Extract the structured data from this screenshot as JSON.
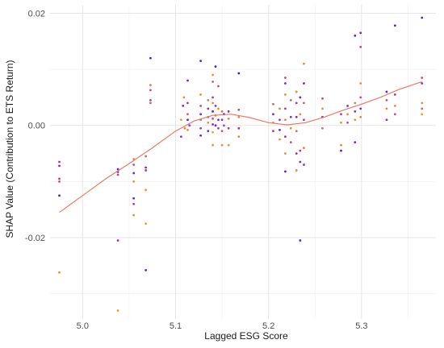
{
  "chart_data": {
    "type": "scatter",
    "title": "",
    "xlabel": "Lagged ESG Score",
    "ylabel": "SHAP Value (Contribution to ETS Return)",
    "xlim": [
      4.965,
      5.38
    ],
    "ylim": [
      -0.0345,
      0.0215
    ],
    "x_ticks": [
      5.0,
      5.1,
      5.2,
      5.3
    ],
    "x_tick_labels": [
      "5.0",
      "5.1",
      "5.2",
      "5.3"
    ],
    "y_ticks": [
      -0.02,
      0.0,
      0.02
    ],
    "y_tick_labels": [
      "-0.02",
      "0.00",
      "0.02"
    ],
    "grid": true,
    "legend": "none",
    "colors": {
      "low": "#3b14e0",
      "mid": "#b03a9a",
      "high": "#f5a623",
      "trend": "#f07865"
    },
    "points": [
      {
        "x": 4.975,
        "y": -0.0065,
        "c": 0.45
      },
      {
        "x": 4.975,
        "y": -0.0072,
        "c": 0.3
      },
      {
        "x": 4.975,
        "y": -0.0095,
        "c": 0.5
      },
      {
        "x": 4.975,
        "y": -0.01,
        "c": 0.6
      },
      {
        "x": 4.975,
        "y": -0.0125,
        "c": 0.1
      },
      {
        "x": 4.975,
        "y": -0.0262,
        "c": 0.9
      },
      {
        "x": 5.038,
        "y": -0.0078,
        "c": 0.2
      },
      {
        "x": 5.038,
        "y": -0.0083,
        "c": 0.4
      },
      {
        "x": 5.038,
        "y": -0.0088,
        "c": 0.55
      },
      {
        "x": 5.038,
        "y": -0.0205,
        "c": 0.35
      },
      {
        "x": 5.038,
        "y": -0.033,
        "c": 0.95
      },
      {
        "x": 5.055,
        "y": -0.006,
        "c": 0.85
      },
      {
        "x": 5.055,
        "y": -0.007,
        "c": 0.6
      },
      {
        "x": 5.055,
        "y": -0.0085,
        "c": 0.25
      },
      {
        "x": 5.055,
        "y": -0.01,
        "c": 0.9
      },
      {
        "x": 5.055,
        "y": -0.013,
        "c": 0.15
      },
      {
        "x": 5.055,
        "y": -0.014,
        "c": 0.5
      },
      {
        "x": 5.055,
        "y": -0.016,
        "c": 0.9
      },
      {
        "x": 5.068,
        "y": -0.0055,
        "c": 0.7
      },
      {
        "x": 5.068,
        "y": -0.0075,
        "c": 0.3
      },
      {
        "x": 5.068,
        "y": -0.008,
        "c": 0.5
      },
      {
        "x": 5.068,
        "y": -0.0115,
        "c": 0.92
      },
      {
        "x": 5.068,
        "y": -0.0175,
        "c": 0.95
      },
      {
        "x": 5.068,
        "y": -0.0258,
        "c": 0.15
      },
      {
        "x": 5.073,
        "y": 0.012,
        "c": 0.05
      },
      {
        "x": 5.073,
        "y": 0.0072,
        "c": 0.8
      },
      {
        "x": 5.073,
        "y": 0.0063,
        "c": 0.6
      },
      {
        "x": 5.073,
        "y": 0.0045,
        "c": 0.5
      },
      {
        "x": 5.073,
        "y": 0.004,
        "c": 0.7
      },
      {
        "x": 5.106,
        "y": 0.001,
        "c": 0.95
      },
      {
        "x": 5.106,
        "y": -0.002,
        "c": 0.4
      },
      {
        "x": 5.108,
        "y": 0.0035,
        "c": 0.3
      },
      {
        "x": 5.109,
        "y": 0.005,
        "c": 0.9
      },
      {
        "x": 5.11,
        "y": -0.0005,
        "c": 0.85
      },
      {
        "x": 5.113,
        "y": 0.008,
        "c": 0.25
      },
      {
        "x": 5.113,
        "y": 0.004,
        "c": 0.5
      },
      {
        "x": 5.113,
        "y": 0.002,
        "c": 0.7
      },
      {
        "x": 5.113,
        "y": 0.001,
        "c": 0.2
      },
      {
        "x": 5.113,
        "y": -0.0008,
        "c": 0.9
      },
      {
        "x": 5.115,
        "y": 0.0,
        "c": 0.45
      },
      {
        "x": 5.127,
        "y": 0.0115,
        "c": 0.1
      },
      {
        "x": 5.127,
        "y": 0.0055,
        "c": 0.9
      },
      {
        "x": 5.127,
        "y": 0.0035,
        "c": 0.6
      },
      {
        "x": 5.127,
        "y": 0.002,
        "c": 0.3
      },
      {
        "x": 5.127,
        "y": 0.001,
        "c": 0.75
      },
      {
        "x": 5.127,
        "y": -0.0005,
        "c": 0.5
      },
      {
        "x": 5.127,
        "y": -0.0018,
        "c": 0.2
      },
      {
        "x": 5.135,
        "y": 0.0045,
        "c": 0.8
      },
      {
        "x": 5.135,
        "y": 0.003,
        "c": 0.4
      },
      {
        "x": 5.135,
        "y": 0.0015,
        "c": 0.6
      },
      {
        "x": 5.135,
        "y": 0.0005,
        "c": 0.9
      },
      {
        "x": 5.135,
        "y": -0.001,
        "c": 0.3
      },
      {
        "x": 5.14,
        "y": 0.009,
        "c": 0.9
      },
      {
        "x": 5.14,
        "y": 0.0078,
        "c": 0.7
      },
      {
        "x": 5.14,
        "y": 0.005,
        "c": 0.5
      },
      {
        "x": 5.14,
        "y": 0.004,
        "c": 0.85
      },
      {
        "x": 5.14,
        "y": 0.0025,
        "c": 0.25
      },
      {
        "x": 5.14,
        "y": 0.0012,
        "c": 0.6
      },
      {
        "x": 5.14,
        "y": 0.0002,
        "c": 0.35
      },
      {
        "x": 5.14,
        "y": -0.0012,
        "c": 0.95
      },
      {
        "x": 5.14,
        "y": -0.0035,
        "c": 0.9
      },
      {
        "x": 5.143,
        "y": 0.0105,
        "c": 0.05
      },
      {
        "x": 5.143,
        "y": 0.0035,
        "c": 0.4
      },
      {
        "x": 5.143,
        "y": 0.0018,
        "c": 0.75
      },
      {
        "x": 5.143,
        "y": 0.0,
        "c": 0.2
      },
      {
        "x": 5.146,
        "y": 0.007,
        "c": 0.6
      },
      {
        "x": 5.146,
        "y": 0.003,
        "c": 0.9
      },
      {
        "x": 5.146,
        "y": 0.001,
        "c": 0.3
      },
      {
        "x": 5.146,
        "y": -0.0005,
        "c": 0.5
      },
      {
        "x": 5.15,
        "y": 0.0025,
        "c": 0.8
      },
      {
        "x": 5.15,
        "y": 0.001,
        "c": 0.4
      },
      {
        "x": 5.15,
        "y": -0.001,
        "c": 0.65
      },
      {
        "x": 5.15,
        "y": -0.0035,
        "c": 0.9
      },
      {
        "x": 5.152,
        "y": 0.002,
        "c": 0.1
      },
      {
        "x": 5.152,
        "y": 0.0,
        "c": 0.55
      },
      {
        "x": 5.157,
        "y": 0.0025,
        "c": 0.35
      },
      {
        "x": 5.157,
        "y": 0.0012,
        "c": 0.85
      },
      {
        "x": 5.157,
        "y": -0.0005,
        "c": 0.5
      },
      {
        "x": 5.157,
        "y": -0.0035,
        "c": 0.9
      },
      {
        "x": 5.168,
        "y": 0.0093,
        "c": 0.05
      },
      {
        "x": 5.168,
        "y": 0.0028,
        "c": 0.6
      },
      {
        "x": 5.168,
        "y": 0.0015,
        "c": 0.9
      },
      {
        "x": 5.168,
        "y": -0.0005,
        "c": 0.4
      },
      {
        "x": 5.168,
        "y": -0.002,
        "c": 0.85
      },
      {
        "x": 5.205,
        "y": 0.0038,
        "c": 0.7
      },
      {
        "x": 5.205,
        "y": 0.002,
        "c": 0.3
      },
      {
        "x": 5.205,
        "y": 0.0005,
        "c": 0.9
      },
      {
        "x": 5.205,
        "y": -0.001,
        "c": 0.5
      },
      {
        "x": 5.212,
        "y": 0.003,
        "c": 0.85
      },
      {
        "x": 5.212,
        "y": 0.001,
        "c": 0.45
      },
      {
        "x": 5.212,
        "y": -0.0008,
        "c": 0.2
      },
      {
        "x": 5.212,
        "y": -0.0025,
        "c": 0.9
      },
      {
        "x": 5.218,
        "y": 0.0085,
        "c": 0.6
      },
      {
        "x": 5.218,
        "y": 0.0075,
        "c": 0.3
      },
      {
        "x": 5.218,
        "y": 0.0055,
        "c": 0.9
      },
      {
        "x": 5.218,
        "y": 0.003,
        "c": 0.5
      },
      {
        "x": 5.218,
        "y": 0.001,
        "c": 0.85
      },
      {
        "x": 5.218,
        "y": -0.002,
        "c": 0.4
      },
      {
        "x": 5.218,
        "y": -0.005,
        "c": 0.9
      },
      {
        "x": 5.218,
        "y": -0.0082,
        "c": 0.15
      },
      {
        "x": 5.224,
        "y": 0.0045,
        "c": 0.7
      },
      {
        "x": 5.224,
        "y": 0.0015,
        "c": 0.35
      },
      {
        "x": 5.224,
        "y": -0.0005,
        "c": 0.9
      },
      {
        "x": 5.224,
        "y": -0.003,
        "c": 0.6
      },
      {
        "x": 5.23,
        "y": 0.006,
        "c": 0.9
      },
      {
        "x": 5.23,
        "y": 0.004,
        "c": 0.5
      },
      {
        "x": 5.23,
        "y": 0.0015,
        "c": 0.3
      },
      {
        "x": 5.23,
        "y": -0.001,
        "c": 0.8
      },
      {
        "x": 5.23,
        "y": -0.005,
        "c": 0.4
      },
      {
        "x": 5.23,
        "y": -0.008,
        "c": 0.9
      },
      {
        "x": 5.234,
        "y": 0.005,
        "c": 0.2
      },
      {
        "x": 5.234,
        "y": 0.002,
        "c": 0.9
      },
      {
        "x": 5.234,
        "y": -0.0045,
        "c": 0.55
      },
      {
        "x": 5.234,
        "y": -0.0065,
        "c": 0.3
      },
      {
        "x": 5.234,
        "y": -0.0205,
        "c": 0.1
      },
      {
        "x": 5.238,
        "y": 0.011,
        "c": 0.9
      },
      {
        "x": 5.238,
        "y": 0.0075,
        "c": 0.25
      },
      {
        "x": 5.238,
        "y": 0.004,
        "c": 0.7
      },
      {
        "x": 5.238,
        "y": 0.001,
        "c": 0.5
      },
      {
        "x": 5.238,
        "y": -0.004,
        "c": 0.85
      },
      {
        "x": 5.238,
        "y": -0.007,
        "c": 0.4
      },
      {
        "x": 5.258,
        "y": 0.0048,
        "c": 0.6
      },
      {
        "x": 5.258,
        "y": 0.003,
        "c": 0.9
      },
      {
        "x": 5.258,
        "y": 0.0015,
        "c": 0.3
      },
      {
        "x": 5.258,
        "y": -0.0005,
        "c": 0.75
      },
      {
        "x": 5.278,
        "y": 0.002,
        "c": 0.5
      },
      {
        "x": 5.278,
        "y": 0.0005,
        "c": 0.9
      },
      {
        "x": 5.278,
        "y": -0.0035,
        "c": 0.85
      },
      {
        "x": 5.278,
        "y": -0.0045,
        "c": 0.15
      },
      {
        "x": 5.285,
        "y": 0.0035,
        "c": 0.4
      },
      {
        "x": 5.285,
        "y": 0.002,
        "c": 0.9
      },
      {
        "x": 5.285,
        "y": 0.0005,
        "c": 0.6
      },
      {
        "x": 5.293,
        "y": 0.016,
        "c": 0.2
      },
      {
        "x": 5.293,
        "y": 0.004,
        "c": 0.85
      },
      {
        "x": 5.293,
        "y": 0.0025,
        "c": 0.45
      },
      {
        "x": 5.293,
        "y": 0.001,
        "c": 0.9
      },
      {
        "x": 5.293,
        "y": -0.003,
        "c": 0.2
      },
      {
        "x": 5.299,
        "y": 0.0165,
        "c": 0.3
      },
      {
        "x": 5.299,
        "y": 0.014,
        "c": 0.55
      },
      {
        "x": 5.299,
        "y": 0.0075,
        "c": 0.9
      },
      {
        "x": 5.299,
        "y": 0.005,
        "c": 0.6
      },
      {
        "x": 5.299,
        "y": 0.003,
        "c": 0.35
      },
      {
        "x": 5.299,
        "y": 0.0015,
        "c": 0.85
      },
      {
        "x": 5.327,
        "y": 0.006,
        "c": 0.2
      },
      {
        "x": 5.327,
        "y": 0.0045,
        "c": 0.6
      },
      {
        "x": 5.327,
        "y": 0.003,
        "c": 0.9
      },
      {
        "x": 5.327,
        "y": 0.001,
        "c": 0.4
      },
      {
        "x": 5.336,
        "y": 0.0178,
        "c": 0.15
      },
      {
        "x": 5.336,
        "y": 0.0055,
        "c": 0.5
      },
      {
        "x": 5.336,
        "y": 0.0035,
        "c": 0.9
      },
      {
        "x": 5.336,
        "y": 0.002,
        "c": 0.6
      },
      {
        "x": 5.365,
        "y": 0.0192,
        "c": 0.1
      },
      {
        "x": 5.365,
        "y": 0.0085,
        "c": 0.6
      },
      {
        "x": 5.365,
        "y": 0.0075,
        "c": 0.35
      },
      {
        "x": 5.365,
        "y": 0.004,
        "c": 0.9
      },
      {
        "x": 5.365,
        "y": 0.003,
        "c": 0.7
      },
      {
        "x": 5.365,
        "y": 0.002,
        "c": 0.95
      }
    ],
    "trend": [
      {
        "x": 4.975,
        "y": -0.0155
      },
      {
        "x": 5.0,
        "y": -0.0125
      },
      {
        "x": 5.025,
        "y": -0.0095
      },
      {
        "x": 5.05,
        "y": -0.0068
      },
      {
        "x": 5.075,
        "y": -0.004
      },
      {
        "x": 5.1,
        "y": -0.001
      },
      {
        "x": 5.12,
        "y": 0.0008
      },
      {
        "x": 5.14,
        "y": 0.0018
      },
      {
        "x": 5.16,
        "y": 0.002
      },
      {
        "x": 5.18,
        "y": 0.0014
      },
      {
        "x": 5.2,
        "y": 0.0005
      },
      {
        "x": 5.22,
        "y": 0.0001
      },
      {
        "x": 5.24,
        "y": 0.0005
      },
      {
        "x": 5.26,
        "y": 0.0015
      },
      {
        "x": 5.28,
        "y": 0.0027
      },
      {
        "x": 5.3,
        "y": 0.0038
      },
      {
        "x": 5.32,
        "y": 0.005
      },
      {
        "x": 5.34,
        "y": 0.0064
      },
      {
        "x": 5.365,
        "y": 0.0078
      }
    ]
  }
}
